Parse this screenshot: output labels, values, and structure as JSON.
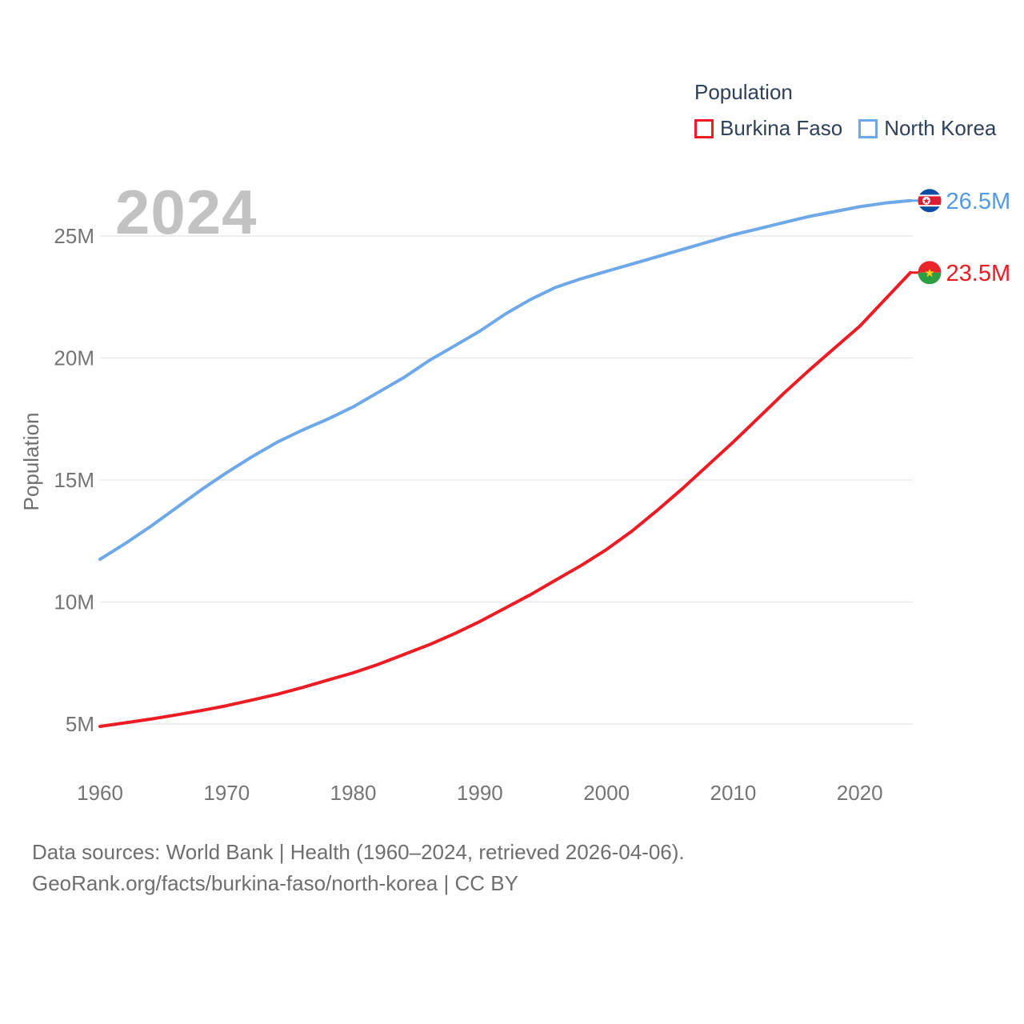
{
  "watermark": "2024",
  "legend": {
    "title": "Population",
    "items": [
      {
        "label": "Burkina Faso",
        "color": "#ed1c24"
      },
      {
        "label": "North Korea",
        "color": "#6ea8e8"
      }
    ]
  },
  "footer": {
    "line1": "Data sources: World Bank | Health (1960–2024, retrieved 2026-04-06).",
    "line2": "GeoRank.org/facts/burkina-faso/north-korea | CC BY"
  },
  "chart_data": {
    "type": "line",
    "title": "Population",
    "ylabel": "Population",
    "grid": "horizontal",
    "legend_position": "top-right",
    "xlim": [
      1960,
      2024
    ],
    "ylim": [
      4.5,
      27
    ],
    "x_ticks": [
      {
        "label": "1960",
        "value": 1960
      },
      {
        "label": "1970",
        "value": 1970
      },
      {
        "label": "1980",
        "value": 1980
      },
      {
        "label": "1990",
        "value": 1990
      },
      {
        "label": "2000",
        "value": 2000
      },
      {
        "label": "2010",
        "value": 2010
      },
      {
        "label": "2020",
        "value": 2020
      }
    ],
    "y_ticks": [
      {
        "label": "5M",
        "value": 5
      },
      {
        "label": "10M",
        "value": 10
      },
      {
        "label": "15M",
        "value": 15
      },
      {
        "label": "20M",
        "value": 20
      },
      {
        "label": "25M",
        "value": 25
      }
    ],
    "x": [
      1960,
      1962,
      1964,
      1966,
      1968,
      1970,
      1972,
      1974,
      1976,
      1978,
      1980,
      1982,
      1984,
      1986,
      1988,
      1990,
      1992,
      1994,
      1996,
      1998,
      2000,
      2002,
      2004,
      2006,
      2008,
      2010,
      2012,
      2014,
      2016,
      2018,
      2020,
      2022,
      2024
    ],
    "series": [
      {
        "name": "Burkina Faso",
        "color": "#ed1c24",
        "label_color": "#ed1c24",
        "end_label": "23.5M",
        "flag_icon": "burkina-faso-flag-icon",
        "values": [
          4.9,
          5.05,
          5.2,
          5.37,
          5.55,
          5.75,
          5.98,
          6.22,
          6.5,
          6.8,
          7.1,
          7.45,
          7.85,
          8.25,
          8.7,
          9.2,
          9.75,
          10.3,
          10.9,
          11.5,
          12.15,
          12.9,
          13.75,
          14.65,
          15.6,
          16.55,
          17.55,
          18.55,
          19.5,
          20.4,
          21.3,
          22.4,
          23.5
        ]
      },
      {
        "name": "North Korea",
        "color": "#6ea8e8",
        "label_color": "#539ae6",
        "end_label": "26.5M",
        "flag_icon": "north-korea-flag-icon",
        "values": [
          11.75,
          12.4,
          13.1,
          13.85,
          14.6,
          15.3,
          15.95,
          16.55,
          17.05,
          17.5,
          18.0,
          18.6,
          19.2,
          19.9,
          20.5,
          21.1,
          21.8,
          22.4,
          22.9,
          23.25,
          23.55,
          23.85,
          24.15,
          24.45,
          24.75,
          25.05,
          25.3,
          25.55,
          25.8,
          26.0,
          26.2,
          26.35,
          26.45
        ]
      }
    ]
  }
}
